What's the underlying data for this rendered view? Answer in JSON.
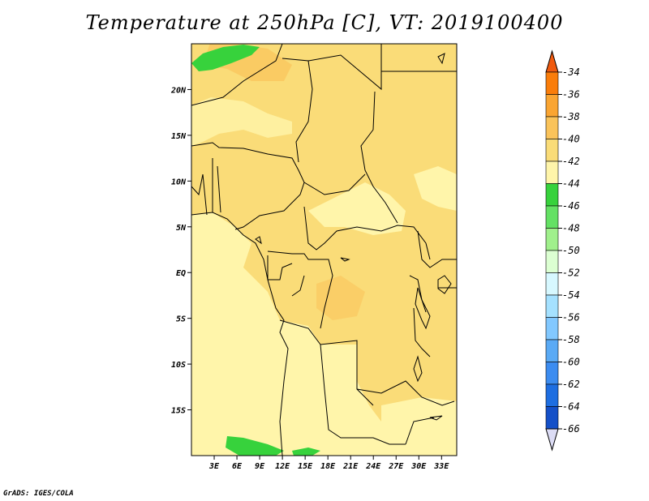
{
  "title": "Temperature at 250hPa [C], VT: 2019100400",
  "credit": "GrADS: IGES/COLA",
  "map": {
    "lon_range": [
      0,
      35
    ],
    "lat_range": [
      -20,
      25
    ],
    "lat_ticks": [
      {
        "value": 20,
        "label": "20N"
      },
      {
        "value": 15,
        "label": "15N"
      },
      {
        "value": 10,
        "label": "10N"
      },
      {
        "value": 5,
        "label": "5N"
      },
      {
        "value": 0,
        "label": "EQ"
      },
      {
        "value": -5,
        "label": "5S"
      },
      {
        "value": -10,
        "label": "10S"
      },
      {
        "value": -15,
        "label": "15S"
      }
    ],
    "lon_ticks": [
      {
        "value": 3,
        "label": "3E"
      },
      {
        "value": 6,
        "label": "6E"
      },
      {
        "value": 9,
        "label": "9E"
      },
      {
        "value": 12,
        "label": "12E"
      },
      {
        "value": 15,
        "label": "15E"
      },
      {
        "value": 18,
        "label": "18E"
      },
      {
        "value": 21,
        "label": "21E"
      },
      {
        "value": 24,
        "label": "24E"
      },
      {
        "value": 27,
        "label": "27E"
      },
      {
        "value": 30,
        "label": "30E"
      },
      {
        "value": 33,
        "label": "33E"
      }
    ]
  },
  "colorbar": {
    "labels": [
      "-34",
      "-36",
      "-38",
      "-40",
      "-42",
      "-44",
      "-46",
      "-48",
      "-50",
      "-52",
      "-54",
      "-56",
      "-58",
      "-60",
      "-62",
      "-64",
      "-66"
    ],
    "colors": [
      "#f05a0f",
      "#fa7d0a",
      "#faa532",
      "#fac35a",
      "#fadc78",
      "#fff5aa",
      "#37d23c",
      "#64e164",
      "#a0f08c",
      "#dcffd2",
      "#d7f8ff",
      "#a5e1ff",
      "#82c8ff",
      "#5aaaf5",
      "#3c8cf0",
      "#1e6ee1",
      "#1450c8",
      "#0a28a0",
      "#0a0a6e"
    ],
    "swatches": [
      "#f05a0f",
      "#fa7d0a",
      "#faa532",
      "#fac35a",
      "#fadc78",
      "#fff5aa",
      "#37d23c",
      "#64e164",
      "#a0f08c",
      "#dcffd2",
      "#d7f8ff",
      "#a5e1ff",
      "#82c8ff",
      "#5aaaf5",
      "#3c8cf0",
      "#1e6ee1",
      "#1450c8",
      "#0a0a6e"
    ],
    "top_color": "#f05a0f",
    "bottom_color": "#dcdcf5"
  }
}
